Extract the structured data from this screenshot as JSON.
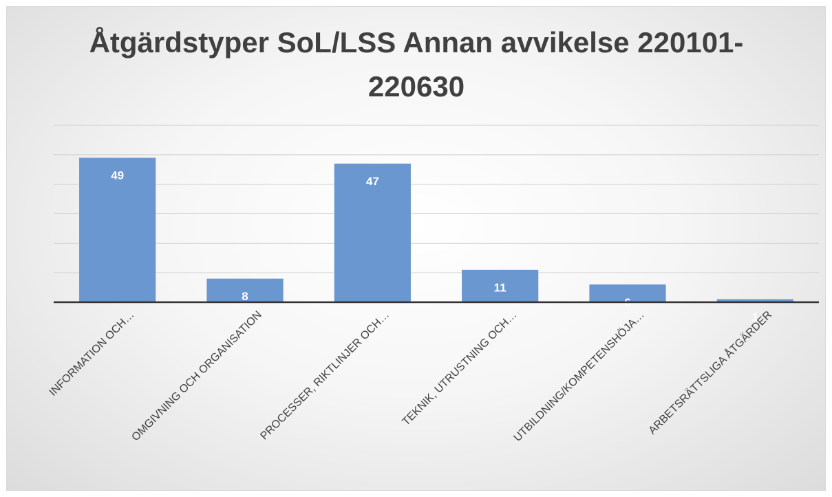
{
  "chart_data": {
    "type": "bar",
    "title": "Åtgärdstyper SoL/LSS Annan avvikelse 220101-220630",
    "categories": [
      "INFORMATION OCH…",
      "OMGIVNING OCH ORGANISATION",
      "PROCESSER, RIKTLINJER OCH…",
      "TEKNIK, UTRUSTNING OCH…",
      "UTBILDNING/KOMPETENSHÖJA…",
      "ARBETSRÄTTSLIGA ÅTGÄRDER"
    ],
    "values": [
      49,
      8,
      47,
      11,
      6,
      1
    ],
    "color": "#6a97cf",
    "ylim": [
      0,
      60
    ],
    "yticks": [
      0,
      10,
      20,
      30,
      40,
      50,
      60
    ],
    "grid": true
  }
}
